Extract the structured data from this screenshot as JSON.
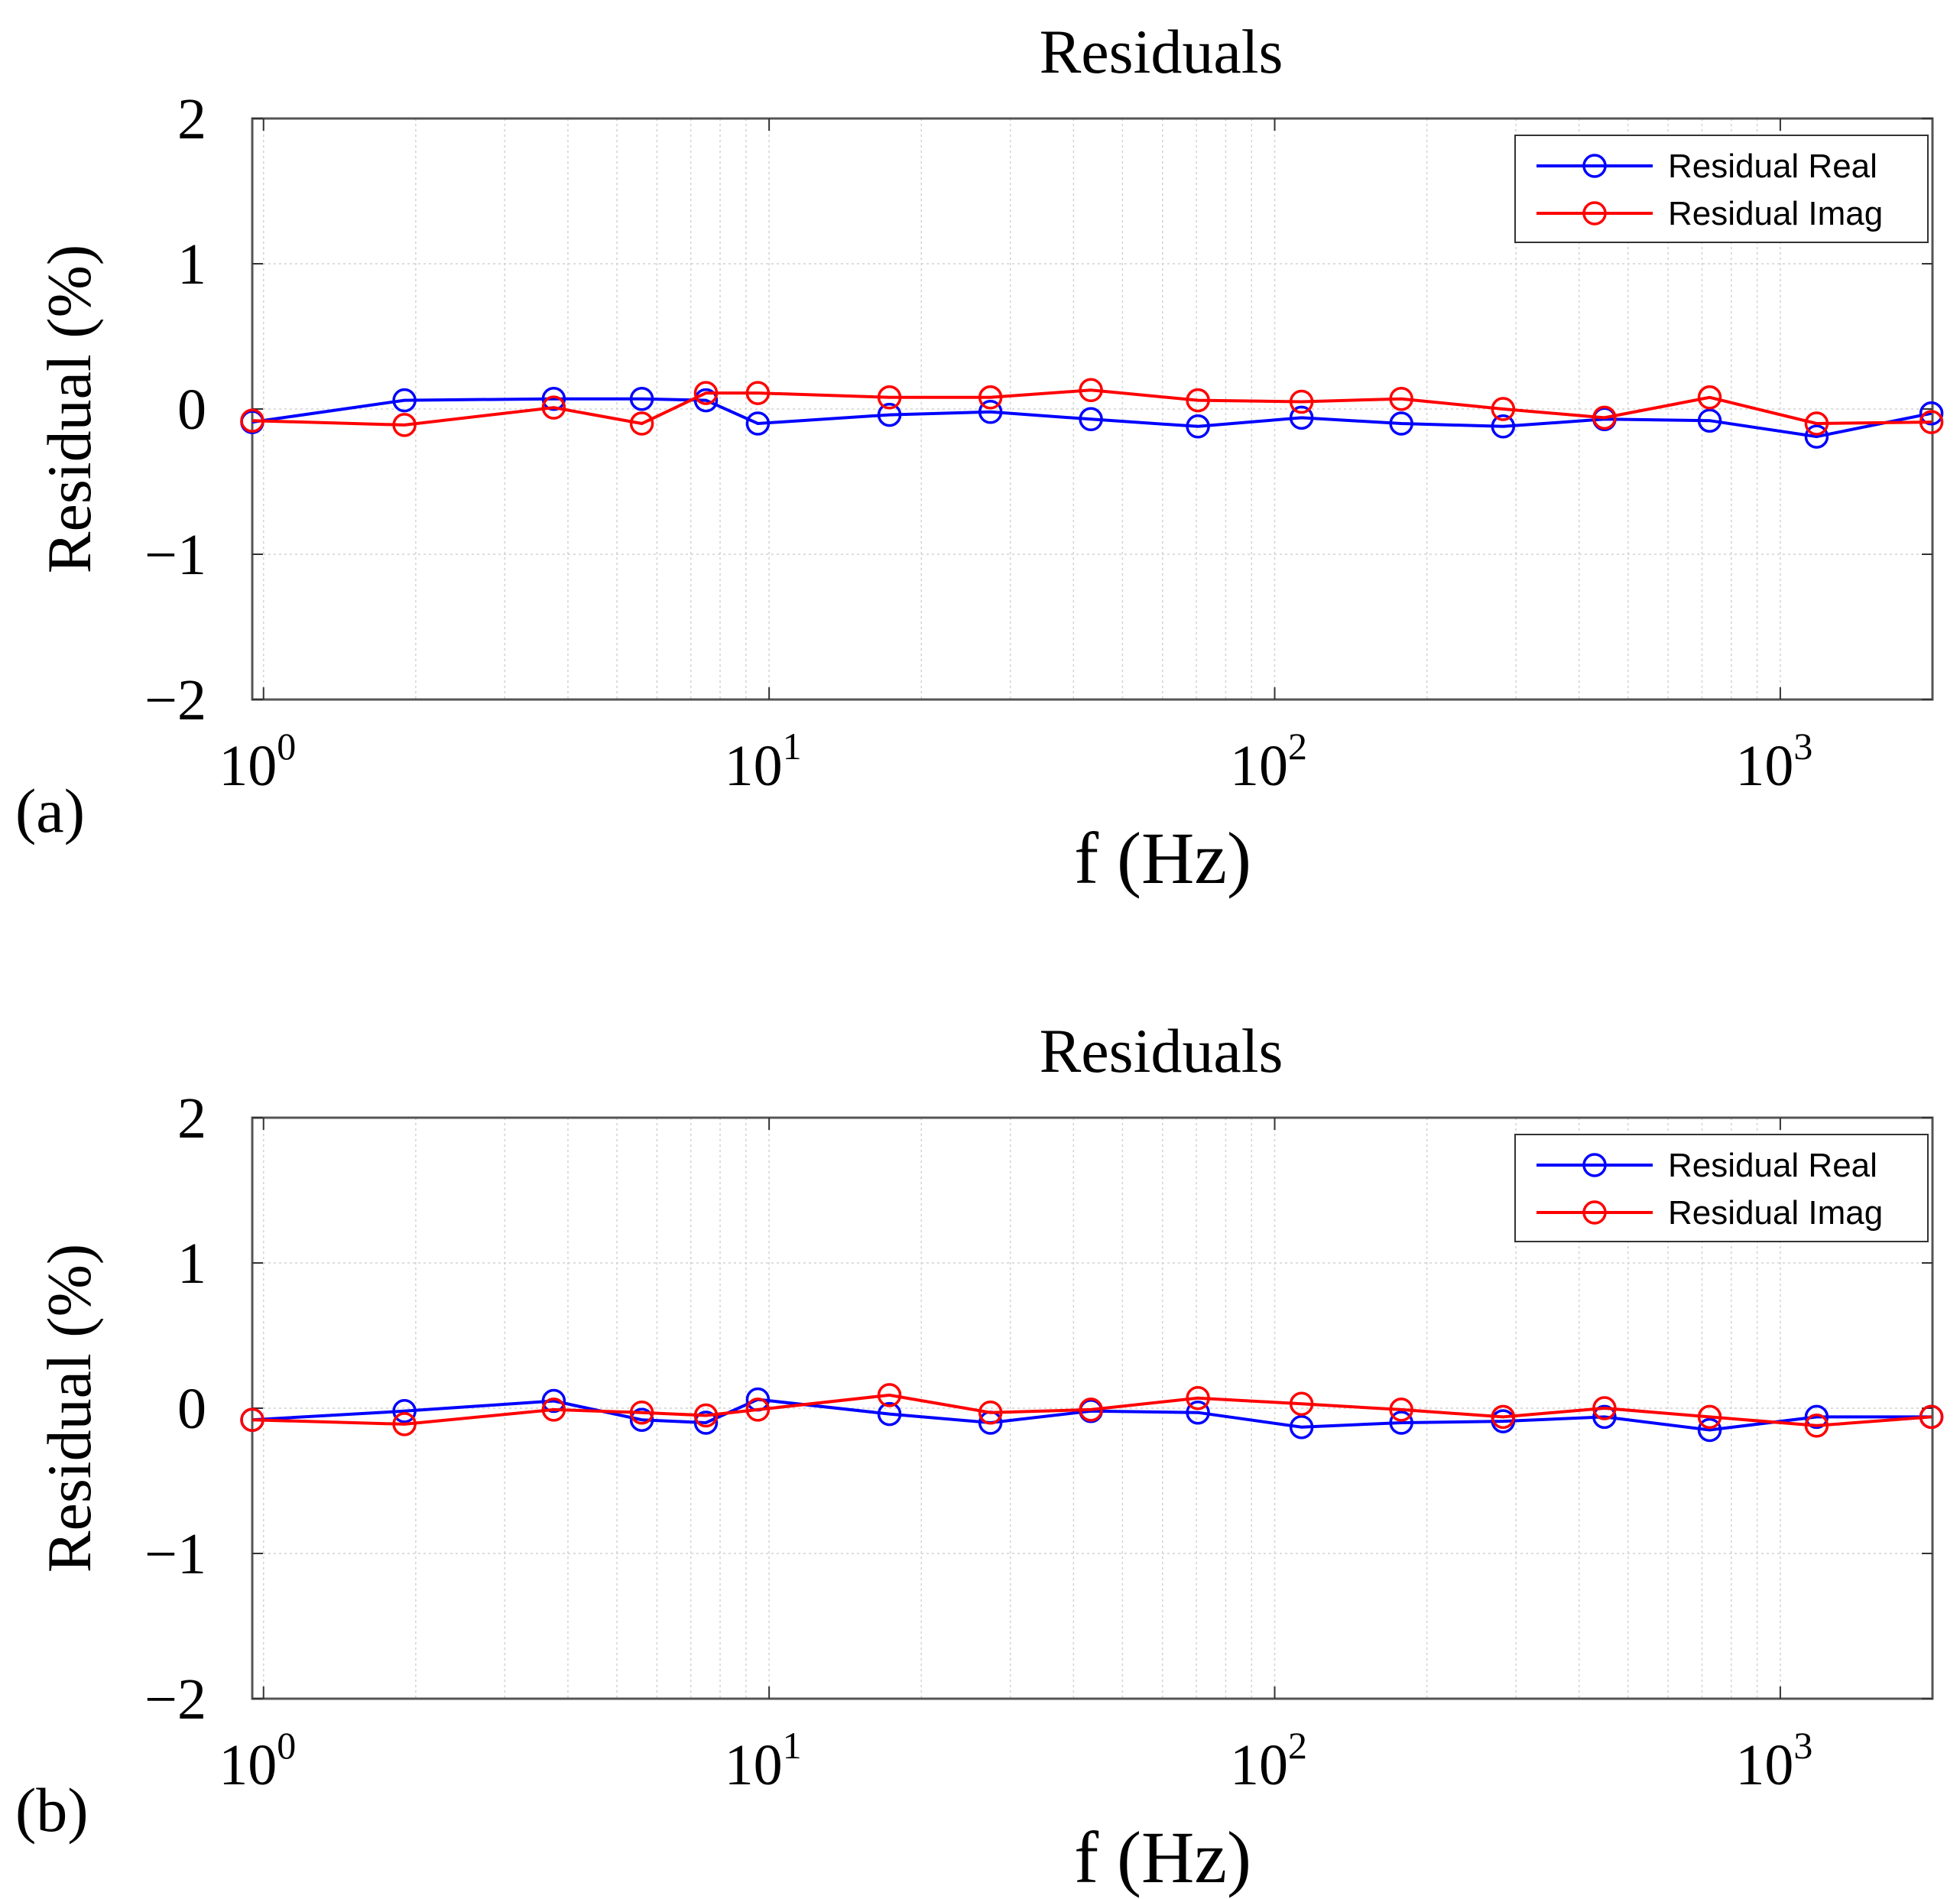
{
  "chart_data": [
    {
      "panel_label": "(a)",
      "type": "line",
      "title": "Residuals",
      "xlabel": "f (Hz)",
      "ylabel": "Residual  (%)",
      "x_scale": "log",
      "xlim": [
        0.95,
        2000
      ],
      "ylim": [
        -2,
        2
      ],
      "yticks": [
        "−2",
        "−1",
        "0",
        "1",
        "2"
      ],
      "xticks": [
        {
          "base": "10",
          "exp": "0"
        },
        {
          "base": "10",
          "exp": "1"
        },
        {
          "base": "10",
          "exp": "2"
        },
        {
          "base": "10",
          "exp": "3"
        }
      ],
      "grid": true,
      "legend_position": "top-right",
      "series": [
        {
          "name": "Residual Real",
          "color": "#0000ff",
          "marker": "circle",
          "x": [
            0.95,
            1.9,
            3.75,
            5.6,
            7.5,
            9.5,
            17.3,
            27.4,
            43.3,
            70.5,
            113,
            178,
            283,
            449,
            725,
            1180,
            1990
          ],
          "y": [
            -0.09,
            0.06,
            0.07,
            0.07,
            0.06,
            -0.1,
            -0.04,
            -0.02,
            -0.07,
            -0.12,
            -0.06,
            -0.1,
            -0.12,
            -0.07,
            -0.08,
            -0.19,
            -0.03
          ]
        },
        {
          "name": "Residual Imag",
          "color": "#ff0000",
          "marker": "circle",
          "x": [
            0.95,
            1.9,
            3.75,
            5.6,
            7.5,
            9.5,
            17.3,
            27.4,
            43.3,
            70.5,
            113,
            178,
            283,
            449,
            725,
            1180,
            1990
          ],
          "y": [
            -0.08,
            -0.11,
            0.01,
            -0.1,
            0.11,
            0.11,
            0.08,
            0.08,
            0.13,
            0.06,
            0.05,
            0.07,
            0.0,
            -0.06,
            0.08,
            -0.1,
            -0.09
          ]
        }
      ]
    },
    {
      "panel_label": "(b)",
      "type": "line",
      "title": "Residuals",
      "xlabel": "f (Hz)",
      "ylabel": "Residual  (%)",
      "x_scale": "log",
      "xlim": [
        0.95,
        2000
      ],
      "ylim": [
        -2,
        2
      ],
      "yticks": [
        "−2",
        "−1",
        "0",
        "1",
        "2"
      ],
      "xticks": [
        {
          "base": "10",
          "exp": "0"
        },
        {
          "base": "10",
          "exp": "1"
        },
        {
          "base": "10",
          "exp": "2"
        },
        {
          "base": "10",
          "exp": "3"
        }
      ],
      "grid": true,
      "legend_position": "top-right",
      "series": [
        {
          "name": "Residual Real",
          "color": "#0000ff",
          "marker": "circle",
          "x": [
            0.95,
            1.9,
            3.75,
            5.6,
            7.5,
            9.5,
            17.3,
            27.4,
            43.3,
            70.5,
            113,
            178,
            283,
            449,
            725,
            1180,
            1990
          ],
          "y": [
            -0.08,
            -0.02,
            0.05,
            -0.08,
            -0.1,
            0.06,
            -0.04,
            -0.1,
            -0.02,
            -0.03,
            -0.13,
            -0.1,
            -0.09,
            -0.06,
            -0.15,
            -0.06,
            -0.06
          ]
        },
        {
          "name": "Residual Imag",
          "color": "#ff0000",
          "marker": "circle",
          "x": [
            0.95,
            1.9,
            3.75,
            5.6,
            7.5,
            9.5,
            17.3,
            27.4,
            43.3,
            70.5,
            113,
            178,
            283,
            449,
            725,
            1180,
            1990
          ],
          "y": [
            -0.08,
            -0.11,
            -0.01,
            -0.03,
            -0.05,
            -0.01,
            0.09,
            -0.03,
            -0.01,
            0.07,
            0.03,
            -0.01,
            -0.06,
            0.0,
            -0.06,
            -0.12,
            -0.06
          ]
        }
      ]
    }
  ]
}
